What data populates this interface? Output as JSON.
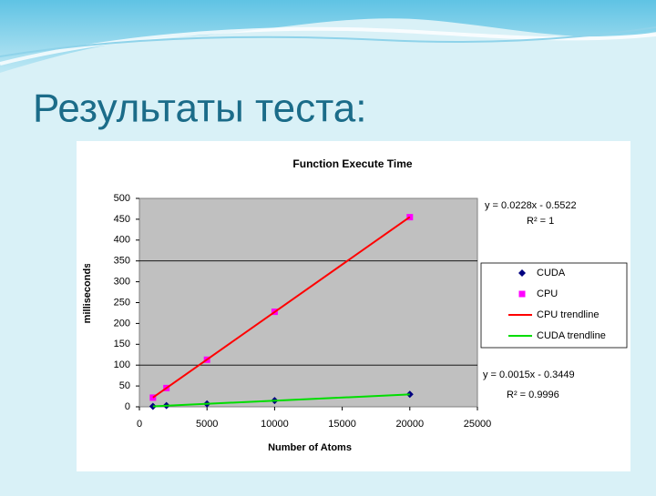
{
  "slide_title": "Результаты теста:",
  "chart_data": {
    "type": "scatter",
    "title": "Function Execute Time",
    "x_label": "Number of Atoms",
    "y_label": "milliseconds",
    "xlim": [
      0,
      25000
    ],
    "xticks": [
      0,
      5000,
      10000,
      15000,
      20000,
      25000
    ],
    "ylim": [
      0,
      500
    ],
    "yticks": [
      0,
      50,
      100,
      150,
      200,
      250,
      300,
      350,
      400,
      450,
      500
    ],
    "series": [
      {
        "name": "CUDA",
        "color": "#000080",
        "marker": "diamond",
        "x": [
          1000,
          2000,
          5000,
          10000,
          20000
        ],
        "values": [
          1,
          3,
          7,
          15,
          30
        ]
      },
      {
        "name": "CPU",
        "color": "#ff00ff",
        "marker": "square",
        "x": [
          1000,
          2000,
          5000,
          10000,
          20000
        ],
        "values": [
          22,
          45,
          113,
          228,
          455
        ]
      },
      {
        "name": "CPU trendline",
        "color": "#ff0000",
        "marker": "line",
        "x": [
          1000,
          20000
        ],
        "values": [
          22.2,
          455.4
        ]
      },
      {
        "name": "CUDA trendline",
        "color": "#00dd00",
        "marker": "line",
        "x": [
          1000,
          20000
        ],
        "values": [
          1.2,
          29.7
        ]
      }
    ],
    "annotations": [
      "y = 0.0228x - 0.5522",
      "R² = 1",
      "y = 0.0015x - 0.3449",
      "R² = 0.9996"
    ]
  }
}
